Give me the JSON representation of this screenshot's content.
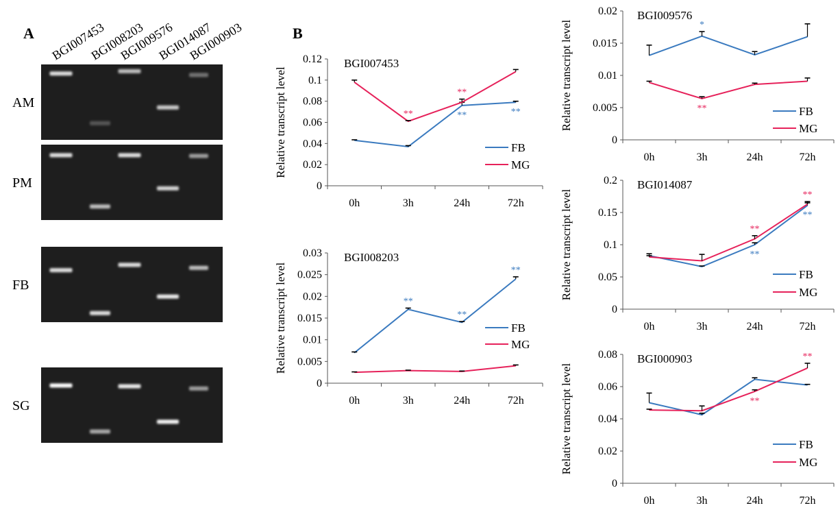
{
  "panel_a": {
    "letter": "A",
    "lanes": [
      "BGI007453",
      "BGI008203",
      "BGI009576",
      "BGI014087",
      "BGI000903"
    ],
    "tissues": [
      {
        "label": "AM",
        "bands": [
          {
            "lane": 0,
            "level": 0.12,
            "intensity": 0.85
          },
          {
            "lane": 1,
            "level": 0.78,
            "intensity": 0.22
          },
          {
            "lane": 2,
            "level": 0.09,
            "intensity": 0.7
          },
          {
            "lane": 3,
            "level": 0.57,
            "intensity": 0.75
          },
          {
            "lane": 4,
            "level": 0.14,
            "intensity": 0.35
          }
        ]
      },
      {
        "label": "PM",
        "bands": [
          {
            "lane": 0,
            "level": 0.14,
            "intensity": 0.85
          },
          {
            "lane": 1,
            "level": 0.82,
            "intensity": 0.7
          },
          {
            "lane": 2,
            "level": 0.14,
            "intensity": 0.85
          },
          {
            "lane": 3,
            "level": 0.58,
            "intensity": 0.8
          },
          {
            "lane": 4,
            "level": 0.15,
            "intensity": 0.55
          }
        ]
      },
      {
        "label": "FB",
        "bands": [
          {
            "lane": 0,
            "level": 0.31,
            "intensity": 0.85
          },
          {
            "lane": 1,
            "level": 0.88,
            "intensity": 0.85
          },
          {
            "lane": 2,
            "level": 0.24,
            "intensity": 0.85
          },
          {
            "lane": 3,
            "level": 0.66,
            "intensity": 0.9
          },
          {
            "lane": 4,
            "level": 0.28,
            "intensity": 0.7
          }
        ]
      },
      {
        "label": "SG",
        "bands": [
          {
            "lane": 0,
            "level": 0.24,
            "intensity": 1.0
          },
          {
            "lane": 1,
            "level": 0.85,
            "intensity": 0.6
          },
          {
            "lane": 2,
            "level": 0.25,
            "intensity": 0.9
          },
          {
            "lane": 3,
            "level": 0.72,
            "intensity": 0.95
          },
          {
            "lane": 4,
            "level": 0.28,
            "intensity": 0.55
          }
        ]
      }
    ]
  },
  "panel_b": {
    "letter": "B"
  },
  "colors": {
    "FB": "#3a7abf",
    "MG": "#e6215a",
    "axis": "#555555",
    "gel": "#1a1a1a",
    "gel_bg": "#1e1e1e"
  },
  "chart_data": [
    {
      "type": "line",
      "title": "BGI007453",
      "ylabel": "Relative transcript level",
      "categories": [
        "0h",
        "3h",
        "24h",
        "72h"
      ],
      "ylim": [
        0,
        0.12
      ],
      "yticks": [
        "0",
        "0.02",
        "0.04",
        "0.06",
        "0.08",
        "0.1",
        "0.12"
      ],
      "series": [
        {
          "name": "FB",
          "values": [
            0.043,
            0.037,
            0.076,
            0.079
          ],
          "err": [
            0.0005,
            0.001,
            0.003,
            0.001
          ]
        },
        {
          "name": "MG",
          "values": [
            0.098,
            0.061,
            0.079,
            0.108
          ],
          "err": [
            0.002,
            0.0007,
            0.003,
            0.002
          ]
        }
      ],
      "annotations": [
        {
          "series": "MG",
          "index": 1,
          "text": "**"
        },
        {
          "series": "MG",
          "index": 2,
          "text": "**"
        },
        {
          "series": "FB",
          "index": 2,
          "text": "**"
        },
        {
          "series": "FB",
          "index": 3,
          "text": "**"
        }
      ]
    },
    {
      "type": "line",
      "title": "BGI008203",
      "ylabel": "Relative transcript level",
      "categories": [
        "0h",
        "3h",
        "24h",
        "72h"
      ],
      "ylim": [
        0,
        0.03
      ],
      "yticks": [
        "0",
        "0.005",
        "0.01",
        "0.015",
        "0.02",
        "0.025",
        "0.03"
      ],
      "series": [
        {
          "name": "FB",
          "values": [
            0.007,
            0.017,
            0.014,
            0.024
          ],
          "err": [
            0.0002,
            0.0003,
            0.0002,
            0.0005
          ]
        },
        {
          "name": "MG",
          "values": [
            0.0025,
            0.0029,
            0.0027,
            0.004
          ],
          "err": [
            0.0001,
            0.0001,
            0.0001,
            0.0002
          ]
        }
      ],
      "annotations": [
        {
          "series": "FB",
          "index": 1,
          "text": "**"
        },
        {
          "series": "FB",
          "index": 2,
          "text": "**"
        },
        {
          "series": "FB",
          "index": 3,
          "text": "**"
        }
      ]
    },
    {
      "type": "line",
      "title": "BGI009576",
      "ylabel": "Relative transcript level",
      "categories": [
        "0h",
        "3h",
        "24h",
        "72h"
      ],
      "ylim": [
        0,
        0.02
      ],
      "yticks": [
        "0",
        "0.005",
        "0.01",
        "0.015",
        "0.02"
      ],
      "series": [
        {
          "name": "FB",
          "values": [
            0.0131,
            0.0161,
            0.0132,
            0.016
          ],
          "err": [
            0.0016,
            0.0007,
            0.0005,
            0.002
          ]
        },
        {
          "name": "MG",
          "values": [
            0.0089,
            0.0064,
            0.0086,
            0.0091
          ],
          "err": [
            0.0002,
            0.0003,
            0.0002,
            0.0005
          ]
        }
      ],
      "annotations": [
        {
          "series": "FB",
          "index": 1,
          "text": "*"
        },
        {
          "series": "MG",
          "index": 1,
          "text": "**"
        }
      ]
    },
    {
      "type": "line",
      "title": "BGI014087",
      "ylabel": "Relative transcript level",
      "categories": [
        "0h",
        "3h",
        "24h",
        "72h"
      ],
      "ylim": [
        0,
        0.2
      ],
      "yticks": [
        "0",
        "0.05",
        "0.1",
        "0.15",
        "0.2"
      ],
      "series": [
        {
          "name": "FB",
          "values": [
            0.083,
            0.066,
            0.1,
            0.161
          ],
          "err": [
            0.003,
            0.001,
            0.003,
            0.004
          ]
        },
        {
          "name": "MG",
          "values": [
            0.081,
            0.075,
            0.109,
            0.163
          ],
          "err": [
            0.002,
            0.01,
            0.005,
            0.004
          ]
        }
      ],
      "annotations": [
        {
          "series": "MG",
          "index": 2,
          "text": "**"
        },
        {
          "series": "FB",
          "index": 2,
          "text": "**"
        },
        {
          "series": "MG",
          "index": 3,
          "text": "**"
        },
        {
          "series": "FB",
          "index": 3,
          "text": "**"
        }
      ]
    },
    {
      "type": "line",
      "title": "BGI000903",
      "ylabel": "Relative transcript level",
      "categories": [
        "0h",
        "3h",
        "24h",
        "72h"
      ],
      "ylim": [
        0,
        0.08
      ],
      "yticks": [
        "0",
        "0.02",
        "0.04",
        "0.06",
        "0.08"
      ],
      "series": [
        {
          "name": "FB",
          "values": [
            0.05,
            0.0425,
            0.0645,
            0.061
          ],
          "err": [
            0.006,
            0.001,
            0.001,
            0.0004
          ]
        },
        {
          "name": "MG",
          "values": [
            0.0455,
            0.045,
            0.057,
            0.0715
          ],
          "err": [
            0.0005,
            0.003,
            0.001,
            0.003
          ]
        }
      ],
      "annotations": [
        {
          "series": "MG",
          "index": 2,
          "text": "**"
        },
        {
          "series": "MG",
          "index": 3,
          "text": "**"
        }
      ]
    }
  ]
}
